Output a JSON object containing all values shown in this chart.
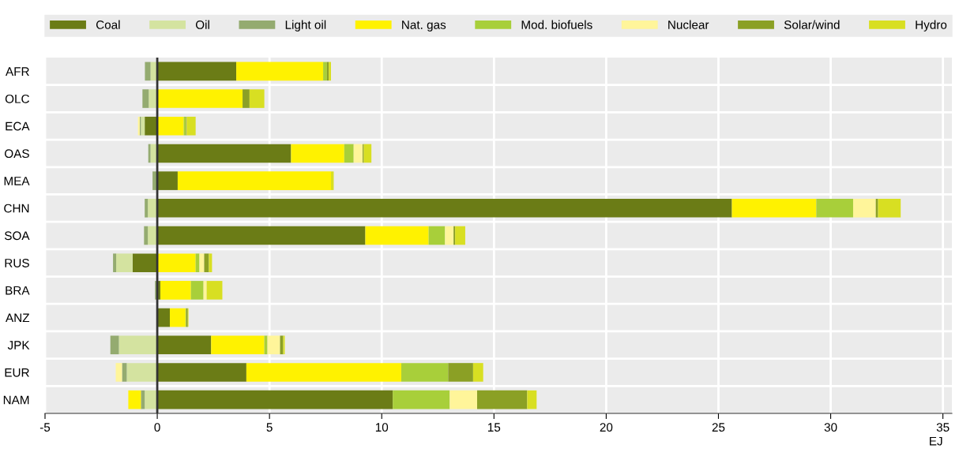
{
  "chart_data": {
    "type": "bar",
    "orientation": "horizontal",
    "stacked": true,
    "xlabel": "EJ",
    "categories": [
      "AFR",
      "OLC",
      "ECA",
      "OAS",
      "MEA",
      "CHN",
      "SOA",
      "RUS",
      "BRA",
      "ANZ",
      "JPK",
      "EUR",
      "NAM"
    ],
    "series": [
      {
        "name": "Coal",
        "color": "#6b7c16",
        "values": [
          3.52,
          0,
          -0.56,
          5.96,
          0.91,
          25.6,
          9.27,
          -1.1,
          0.14,
          0.56,
          2.4,
          3.97,
          10.49
        ]
      },
      {
        "name": "Oil",
        "color": "#d4e3a0",
        "values": [
          -0.3,
          -0.38,
          -0.17,
          -0.3,
          0,
          -0.42,
          -0.42,
          -0.73,
          0,
          0,
          -1.71,
          -1.36,
          -0.56
        ]
      },
      {
        "name": "Light oil",
        "color": "#94ab70",
        "values": [
          -0.25,
          -0.28,
          -0.05,
          -0.1,
          -0.21,
          -0.14,
          -0.17,
          -0.14,
          -0.1,
          0,
          -0.38,
          -0.21,
          -0.17
        ]
      },
      {
        "name": "Nat. gas",
        "color": "#fff200",
        "values": [
          3.87,
          3.8,
          1.18,
          2.37,
          6.83,
          3.76,
          2.82,
          1.71,
          1.36,
          0.7,
          2.37,
          6.9,
          -0.56
        ]
      },
      {
        "name": "Mod. biofuels",
        "color": "#a8cf3a",
        "values": [
          0.17,
          0,
          0.1,
          0.42,
          0,
          1.64,
          0.73,
          0.17,
          0.56,
          0.03,
          0.14,
          2.09,
          2.54
        ]
      },
      {
        "name": "Nuclear",
        "color": "#fff59a",
        "values": [
          0,
          0,
          -0.08,
          0.4,
          null,
          1.01,
          0.38,
          0.21,
          0.14,
          0,
          0.56,
          -0.28,
          1.22
        ]
      },
      {
        "name": "Solar/wind",
        "color": "#8ba025",
        "values": [
          0.08,
          0.31,
          0.03,
          0.05,
          0,
          0.1,
          0.07,
          0.21,
          0,
          0.07,
          0.14,
          1.11,
          2.23
        ]
      },
      {
        "name": "Hydro",
        "color": "#d8df22",
        "values": [
          0.1,
          0.66,
          0.4,
          0.34,
          0.12,
          1.01,
          0.45,
          0.14,
          0.7,
          0.03,
          0.07,
          0.45,
          0.42
        ]
      }
    ],
    "xlim": [
      -5,
      35.4
    ],
    "xticks": [
      -5,
      0,
      5,
      10,
      15,
      20,
      25,
      30,
      35
    ],
    "ref_lines": [
      {
        "axis": "x",
        "value": 0,
        "color": "#333333"
      }
    ],
    "grid": "x",
    "legend": "top"
  }
}
